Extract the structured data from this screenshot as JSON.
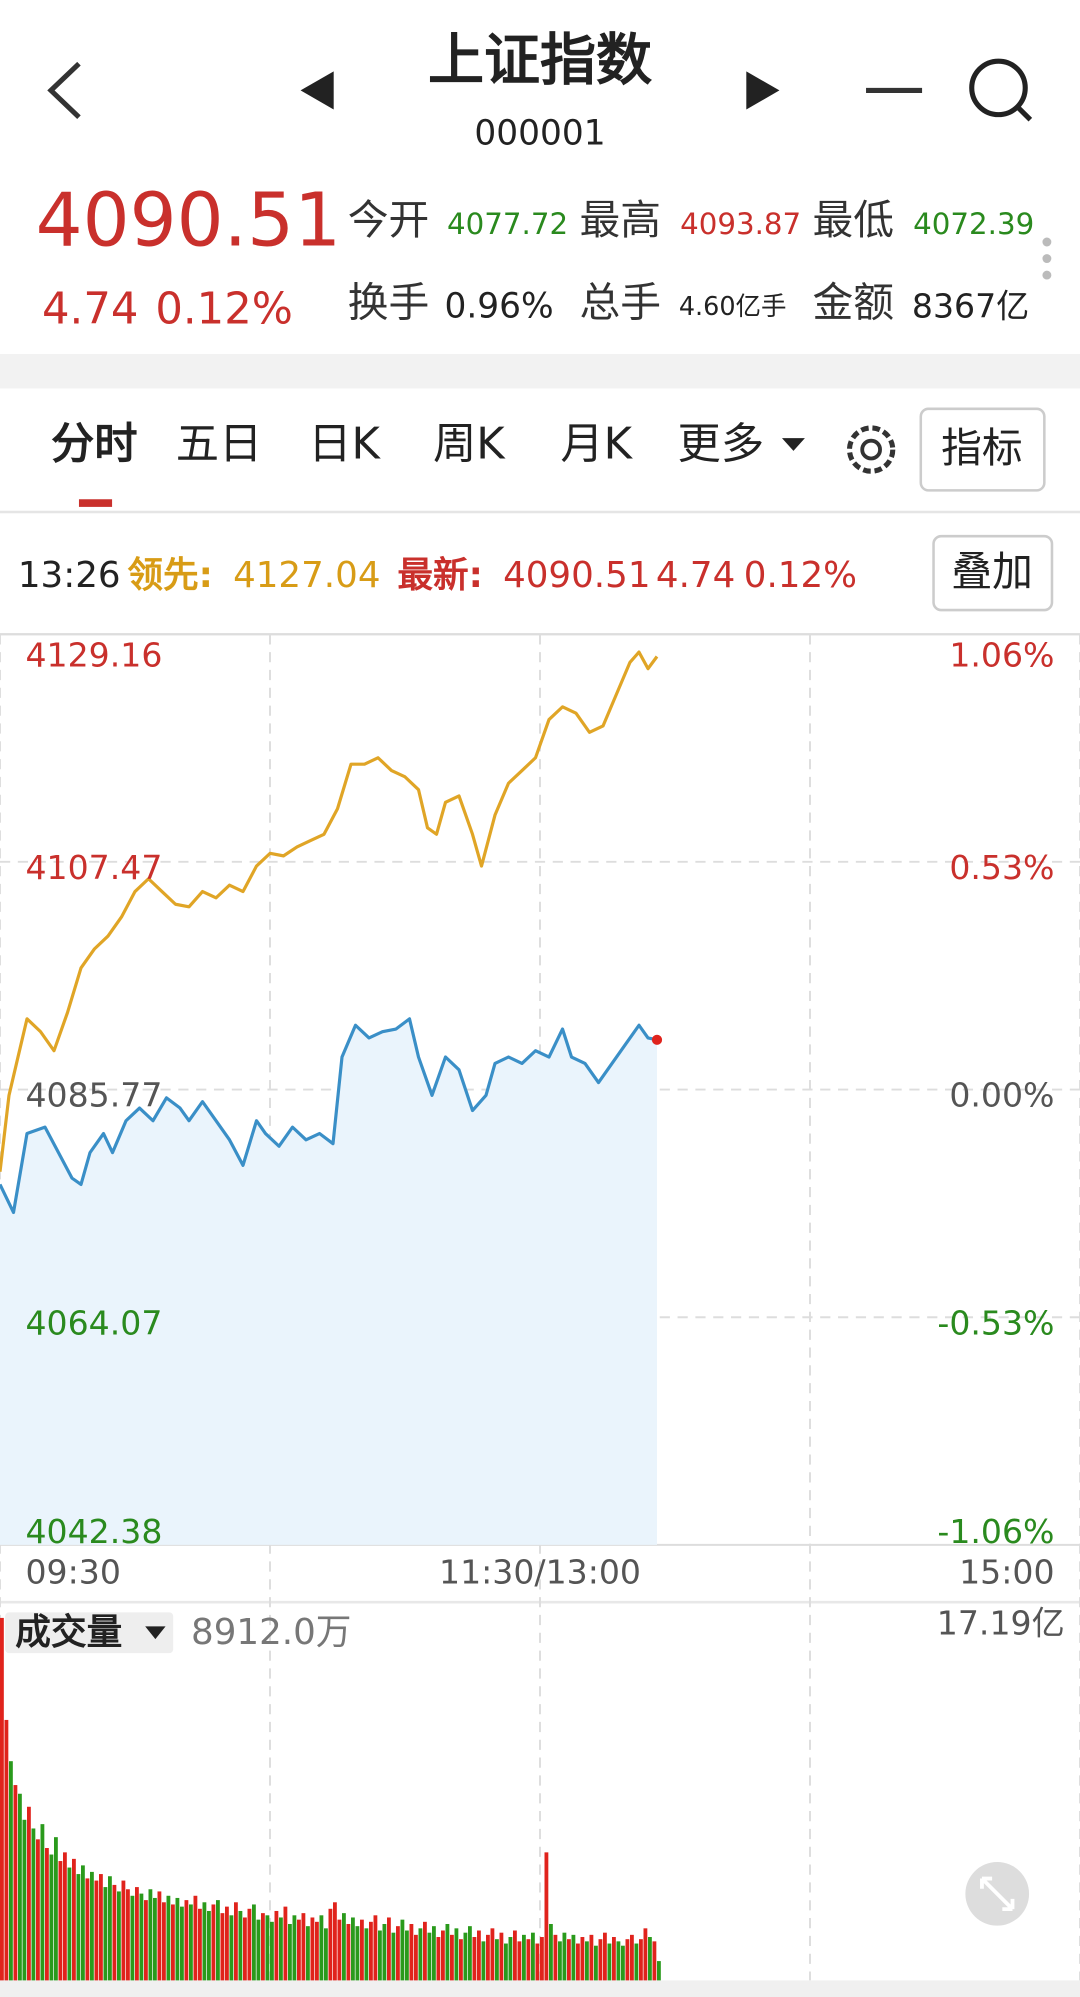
{
  "header": {
    "title": "上证指数",
    "code": "000001"
  },
  "quote": {
    "price": "4090.51",
    "change": "4.74",
    "change_pct": "0.12%",
    "stats": [
      {
        "label": "今开",
        "value": "4077.72"
      },
      {
        "label": "最高",
        "value": "4093.87"
      },
      {
        "label": "最低",
        "value": "4072.39"
      },
      {
        "label": "换手",
        "value": "0.96%"
      },
      {
        "label": "总手",
        "value": "4.60亿手"
      },
      {
        "label": "金额",
        "value": "8367亿"
      }
    ]
  },
  "tabs": [
    "分时",
    "五日",
    "日K",
    "周K",
    "月K",
    "更多"
  ],
  "indicator_button": "指标",
  "info": {
    "time": "13:26",
    "lead_label": "领先:",
    "lead_value": "4127.04",
    "latest_label": "最新:",
    "latest_value": "4090.51",
    "latest_change": "4.74",
    "latest_pct": "0.12%",
    "overlay_button": "叠加"
  },
  "chart_data": [
    {
      "type": "line",
      "xlim": [
        0,
        240
      ],
      "xticks": [
        {
          "value": 0,
          "label": "09:30"
        },
        {
          "value": 120,
          "label": "11:30/13:00"
        },
        {
          "value": 240,
          "label": "15:00"
        }
      ],
      "ylim": [
        4042.38,
        4129.16
      ],
      "yticks": [
        4129.16,
        4107.47,
        4085.77,
        4064.07,
        4042.38
      ],
      "y2lim": [
        -1.06,
        1.06
      ],
      "y2ticks": [
        {
          "value": 1.06,
          "label": "1.06%"
        },
        {
          "value": 0.53,
          "label": "0.53%"
        },
        {
          "value": 0,
          "label": "0.00%"
        },
        {
          "value": -0.53,
          "label": "-0.53%"
        },
        {
          "value": -1.06,
          "label": "-1.06%"
        }
      ],
      "grid": true,
      "series": [
        {
          "color": "#3a8fc7",
          "area_color": "#eaf4fc",
          "x": [
            0,
            3,
            6,
            10,
            13,
            16,
            18,
            20,
            23,
            25,
            28,
            31,
            34,
            37,
            40,
            42,
            45,
            48,
            51,
            54,
            57,
            59,
            62,
            65,
            68,
            71,
            74,
            76,
            79,
            82,
            85,
            88,
            91,
            93,
            96,
            99,
            102,
            105,
            108,
            110,
            113,
            116,
            119,
            122,
            125,
            127,
            130,
            133,
            136,
            139,
            142,
            144,
            146
          ],
          "values": [
            4076.73,
            4074.06,
            4081.58,
            4082.19,
            4079.76,
            4077.33,
            4076.73,
            4079.76,
            4081.58,
            4079.76,
            4082.8,
            4084.01,
            4082.8,
            4084.98,
            4084.01,
            4082.8,
            4084.62,
            4082.8,
            4080.98,
            4078.55,
            4082.8,
            4081.58,
            4080.37,
            4082.19,
            4080.98,
            4081.58,
            4080.61,
            4088.87,
            4091.9,
            4090.69,
            4091.29,
            4091.54,
            4092.51,
            4088.87,
            4085.22,
            4088.87,
            4087.65,
            4083.77,
            4085.22,
            4088.26,
            4088.87,
            4088.26,
            4089.47,
            4088.87,
            4091.54,
            4088.87,
            4088.26,
            4086.44,
            4088.26,
            4090.08,
            4091.9,
            4090.69,
            4090.51
          ]
        },
        {
          "color": "#e0a526",
          "x": [
            0,
            2,
            4,
            6,
            9,
            12,
            15,
            18,
            21,
            24,
            27,
            30,
            33,
            36,
            39,
            42,
            45,
            48,
            51,
            54,
            57,
            60,
            63,
            66,
            69,
            72,
            75,
            78,
            81,
            84,
            87,
            90,
            93,
            95,
            97,
            99,
            102,
            105,
            107,
            110,
            113,
            116,
            119,
            122,
            125,
            128,
            131,
            134,
            137,
            140,
            142,
            144,
            146
          ],
          "values": [
            4077.94,
            4085.22,
            4088.87,
            4092.51,
            4091.29,
            4089.47,
            4093.11,
            4097.36,
            4099.18,
            4100.4,
            4102.22,
            4104.64,
            4105.86,
            4104.64,
            4103.43,
            4103.19,
            4104.64,
            4104.04,
            4105.25,
            4104.64,
            4107.07,
            4108.28,
            4108.04,
            4108.89,
            4109.5,
            4110.1,
            4112.53,
            4116.78,
            4116.78,
            4117.39,
            4116.17,
            4115.57,
            4114.35,
            4110.71,
            4110.1,
            4113.14,
            4113.75,
            4110.1,
            4107.07,
            4111.93,
            4114.96,
            4116.17,
            4117.39,
            4121.03,
            4122.24,
            4121.64,
            4119.81,
            4120.42,
            4123.46,
            4126.49,
            4127.46,
            4125.88,
            4127.04
          ]
        }
      ]
    },
    {
      "type": "bar",
      "label": "成交量",
      "latest_label": "8912.0万",
      "xlim": [
        0,
        240
      ],
      "ylim": [
        0,
        17.19
      ],
      "yticks": [
        {
          "value": 17.19,
          "label": "17.19亿"
        }
      ],
      "up_color": "#e0231c",
      "down_color": "#2a9a1c",
      "values": [
        16.7,
        12.0,
        10.1,
        9.0,
        8.6,
        7.4,
        8.0,
        7.0,
        6.5,
        7.2,
        6.1,
        5.8,
        6.6,
        5.5,
        5.9,
        5.2,
        5.6,
        4.9,
        5.3,
        4.7,
        5.0,
        4.6,
        4.9,
        4.3,
        4.8,
        4.4,
        4.1,
        4.6,
        4.2,
        3.9,
        4.3,
        4.0,
        3.7,
        4.2,
        3.8,
        4.1,
        3.6,
        3.9,
        3.5,
        3.8,
        3.4,
        3.7,
        3.5,
        3.9,
        3.3,
        3.6,
        3.2,
        3.5,
        3.7,
        3.1,
        3.4,
        3.0,
        3.6,
        3.2,
        2.9,
        3.3,
        3.5,
        2.8,
        3.1,
        3.0,
        2.7,
        3.2,
        2.9,
        3.4,
        2.6,
        3.0,
        2.8,
        3.1,
        2.5,
        2.9,
        2.7,
        3.0,
        2.4,
        3.3,
        3.6,
        2.8,
        3.1,
        2.6,
        2.9,
        2.5,
        2.8,
        2.4,
        2.7,
        3.0,
        2.3,
        2.6,
        2.9,
        2.2,
        2.5,
        2.8,
        2.3,
        2.6,
        2.1,
        2.4,
        2.7,
        2.2,
        2.5,
        2.0,
        2.3,
        2.6,
        2.1,
        2.4,
        1.9,
        2.2,
        2.5,
        2.0,
        2.3,
        1.8,
        2.1,
        2.4,
        1.9,
        2.2,
        1.7,
        2.0,
        2.3,
        1.8,
        2.1,
        1.9,
        2.2,
        1.7,
        2.0,
        5.9,
        2.6,
        2.1,
        1.8,
        2.2,
        1.9,
        2.1,
        1.7,
        2.0,
        1.8,
        2.1,
        1.6,
        1.9,
        2.2,
        1.7,
        2.0,
        1.8,
        1.6,
        1.9,
        2.1,
        1.7,
        1.9,
        2.4,
        2.0,
        1.8,
        0.8912
      ],
      "direction": [
        1,
        1,
        0,
        1,
        0,
        0,
        1,
        0,
        1,
        0,
        1,
        0,
        0,
        1,
        1,
        0,
        1,
        0,
        0,
        1,
        0,
        1,
        1,
        0,
        0,
        1,
        0,
        1,
        1,
        0,
        1,
        0,
        1,
        0,
        0,
        1,
        1,
        0,
        1,
        0,
        0,
        1,
        0,
        1,
        1,
        0,
        0,
        1,
        0,
        1,
        1,
        0,
        1,
        0,
        1,
        1,
        0,
        0,
        1,
        0,
        0,
        1,
        0,
        1,
        0,
        0,
        1,
        1,
        0,
        1,
        1,
        0,
        0,
        1,
        1,
        1,
        0,
        1,
        0,
        0,
        1,
        0,
        1,
        1,
        0,
        0,
        1,
        0,
        1,
        0,
        0,
        1,
        1,
        0,
        1,
        0,
        0,
        1,
        1,
        0,
        1,
        0,
        1,
        0,
        0,
        1,
        1,
        0,
        1,
        1,
        0,
        1,
        0,
        0,
        1,
        1,
        0,
        1,
        0,
        1,
        1,
        1,
        0,
        1,
        0,
        0,
        1,
        0,
        1,
        1,
        0,
        1,
        0,
        1,
        1,
        0,
        1,
        0,
        0,
        1,
        1,
        0,
        1,
        1,
        0,
        1,
        0
      ]
    }
  ]
}
